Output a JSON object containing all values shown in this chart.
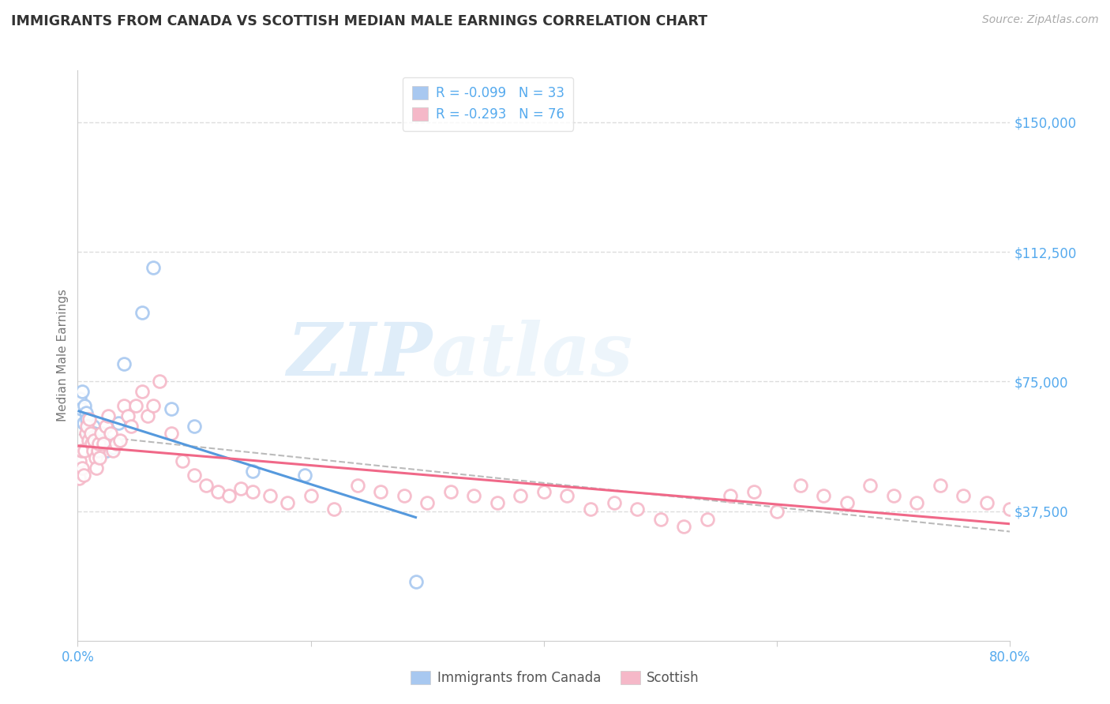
{
  "title": "IMMIGRANTS FROM CANADA VS SCOTTISH MEDIAN MALE EARNINGS CORRELATION CHART",
  "source": "Source: ZipAtlas.com",
  "ylabel": "Median Male Earnings",
  "xlim": [
    0.0,
    0.8
  ],
  "ylim": [
    0,
    165000
  ],
  "yticks": [
    37500,
    75000,
    112500,
    150000
  ],
  "ytick_labels": [
    "$37,500",
    "$75,000",
    "$112,500",
    "$150,000"
  ],
  "xticks": [
    0.0,
    0.2,
    0.4,
    0.6,
    0.8
  ],
  "xtick_labels": [
    "0.0%",
    "",
    "",
    "",
    "80.0%"
  ],
  "watermark_zip": "ZIP",
  "watermark_atlas": "atlas",
  "blue_color": "#a8c8f0",
  "pink_color": "#f5b8c8",
  "blue_line_color": "#5599dd",
  "pink_line_color": "#f06888",
  "dashed_line_color": "#bbbbbb",
  "title_color": "#333333",
  "axis_label_color": "#777777",
  "tick_color": "#55aaee",
  "grid_color": "#dddddd",
  "blue_points_x": [
    0.001,
    0.002,
    0.003,
    0.004,
    0.005,
    0.006,
    0.007,
    0.008,
    0.009,
    0.01,
    0.011,
    0.012,
    0.013,
    0.014,
    0.015,
    0.016,
    0.017,
    0.018,
    0.019,
    0.02,
    0.022,
    0.025,
    0.028,
    0.03,
    0.035,
    0.04,
    0.055,
    0.065,
    0.08,
    0.1,
    0.15,
    0.195,
    0.29
  ],
  "blue_points_y": [
    65000,
    70000,
    67000,
    72000,
    63000,
    68000,
    66000,
    64000,
    62000,
    60000,
    58000,
    57000,
    62000,
    60000,
    59000,
    58000,
    56000,
    57000,
    55000,
    60000,
    58000,
    55000,
    57000,
    56000,
    63000,
    80000,
    95000,
    108000,
    67000,
    62000,
    49000,
    48000,
    17000
  ],
  "pink_points_x": [
    0.001,
    0.002,
    0.003,
    0.004,
    0.005,
    0.006,
    0.007,
    0.008,
    0.009,
    0.01,
    0.011,
    0.012,
    0.013,
    0.014,
    0.015,
    0.016,
    0.017,
    0.018,
    0.019,
    0.02,
    0.022,
    0.024,
    0.026,
    0.028,
    0.03,
    0.033,
    0.036,
    0.04,
    0.043,
    0.046,
    0.05,
    0.055,
    0.06,
    0.065,
    0.07,
    0.08,
    0.09,
    0.1,
    0.11,
    0.12,
    0.13,
    0.14,
    0.15,
    0.165,
    0.18,
    0.2,
    0.22,
    0.24,
    0.26,
    0.28,
    0.3,
    0.32,
    0.34,
    0.36,
    0.38,
    0.4,
    0.42,
    0.44,
    0.46,
    0.48,
    0.5,
    0.52,
    0.54,
    0.56,
    0.58,
    0.6,
    0.62,
    0.64,
    0.66,
    0.68,
    0.7,
    0.72,
    0.74,
    0.76,
    0.78,
    0.8
  ],
  "pink_points_y": [
    47000,
    52000,
    55000,
    50000,
    48000,
    55000,
    60000,
    62000,
    58000,
    64000,
    60000,
    57000,
    55000,
    58000,
    53000,
    50000,
    55000,
    57000,
    53000,
    60000,
    57000,
    62000,
    65000,
    60000,
    55000,
    57000,
    58000,
    68000,
    65000,
    62000,
    68000,
    72000,
    65000,
    68000,
    75000,
    60000,
    52000,
    48000,
    45000,
    43000,
    42000,
    44000,
    43000,
    42000,
    40000,
    42000,
    38000,
    45000,
    43000,
    42000,
    40000,
    43000,
    42000,
    40000,
    42000,
    43000,
    42000,
    38000,
    40000,
    38000,
    35000,
    33000,
    35000,
    42000,
    43000,
    37500,
    45000,
    42000,
    40000,
    45000,
    42000,
    40000,
    45000,
    42000,
    40000,
    38000
  ]
}
